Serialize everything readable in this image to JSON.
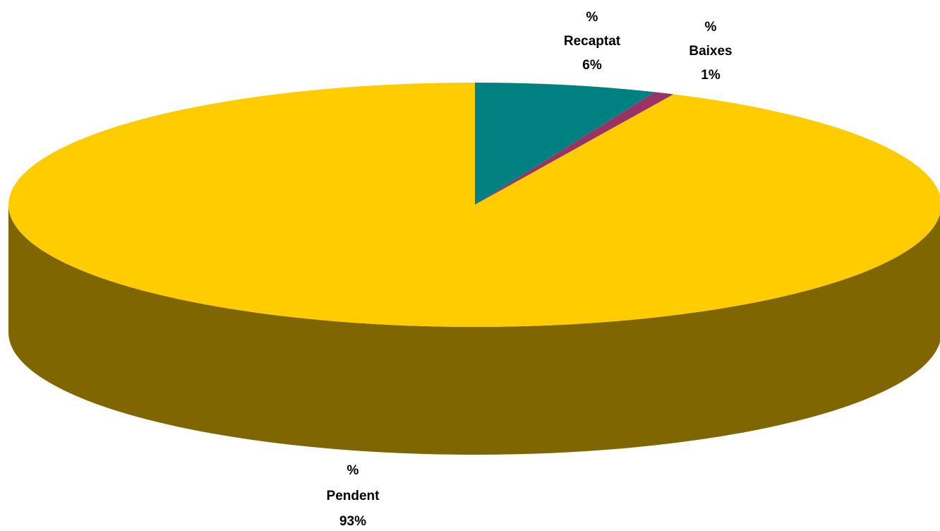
{
  "chart_data": {
    "type": "pie",
    "style": "3d",
    "title": "",
    "slices": [
      {
        "name": "Recaptat",
        "label_prefix": "%",
        "label_name": "Recaptat",
        "label_value": "6%",
        "value": 6.3,
        "color": "#008080"
      },
      {
        "name": "Baixes",
        "label_prefix": "%",
        "label_name": "Baixes",
        "label_value": "1%",
        "value": 0.7,
        "color": "#993366"
      },
      {
        "name": "Pendent",
        "label_prefix": "%",
        "label_name": "Pendent",
        "label_value": "93%",
        "value": 93.0,
        "color": "#FFCC00"
      }
    ],
    "side_color": "#806600",
    "legend": "none"
  }
}
